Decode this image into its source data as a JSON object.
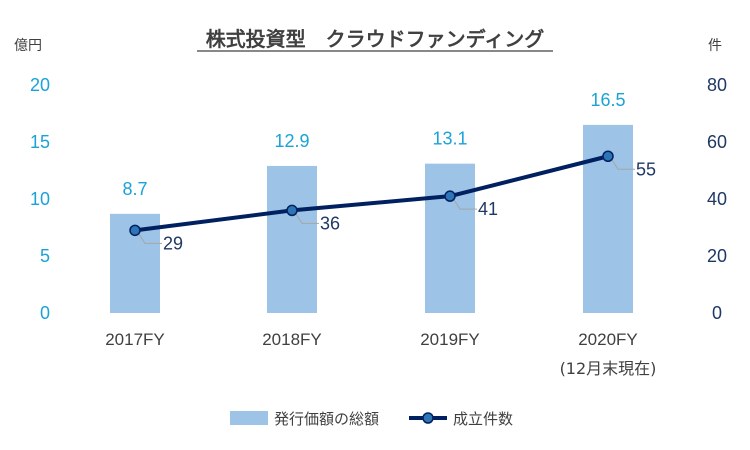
{
  "chart_data": {
    "type": "bar+line",
    "title": "株式投資型　クラウドファンディング",
    "left_unit": "億円",
    "right_unit": "件",
    "categories": [
      "2017FY",
      "2018FY",
      "2019FY",
      "2020FY"
    ],
    "category_sublabels": [
      "",
      "",
      "",
      "(12月末現在)"
    ],
    "series": [
      {
        "name": "発行価額の総額",
        "type": "bar",
        "axis": "left",
        "values": [
          8.7,
          12.9,
          13.1,
          16.5
        ],
        "labels": [
          "8.7",
          "12.9",
          "13.1",
          "16.5"
        ]
      },
      {
        "name": "成立件数",
        "type": "line",
        "axis": "right",
        "values": [
          29,
          36,
          41,
          55
        ],
        "labels": [
          "29",
          "36",
          "41",
          "55"
        ]
      }
    ],
    "y_left": {
      "min": 0,
      "max": 20,
      "ticks": [
        "0",
        "5",
        "10",
        "15",
        "20"
      ]
    },
    "y_right": {
      "min": 0,
      "max": 80,
      "ticks": [
        "0",
        "20",
        "40",
        "60",
        "80"
      ]
    },
    "grid": false,
    "legend": "bottom",
    "colors": {
      "bar": "#9dc3e6",
      "line": "#002060",
      "marker": "#2e75b6",
      "left_axis": "#1aa3d6",
      "right_axis": "#1f3864",
      "leader": "#a6a6a6"
    }
  }
}
